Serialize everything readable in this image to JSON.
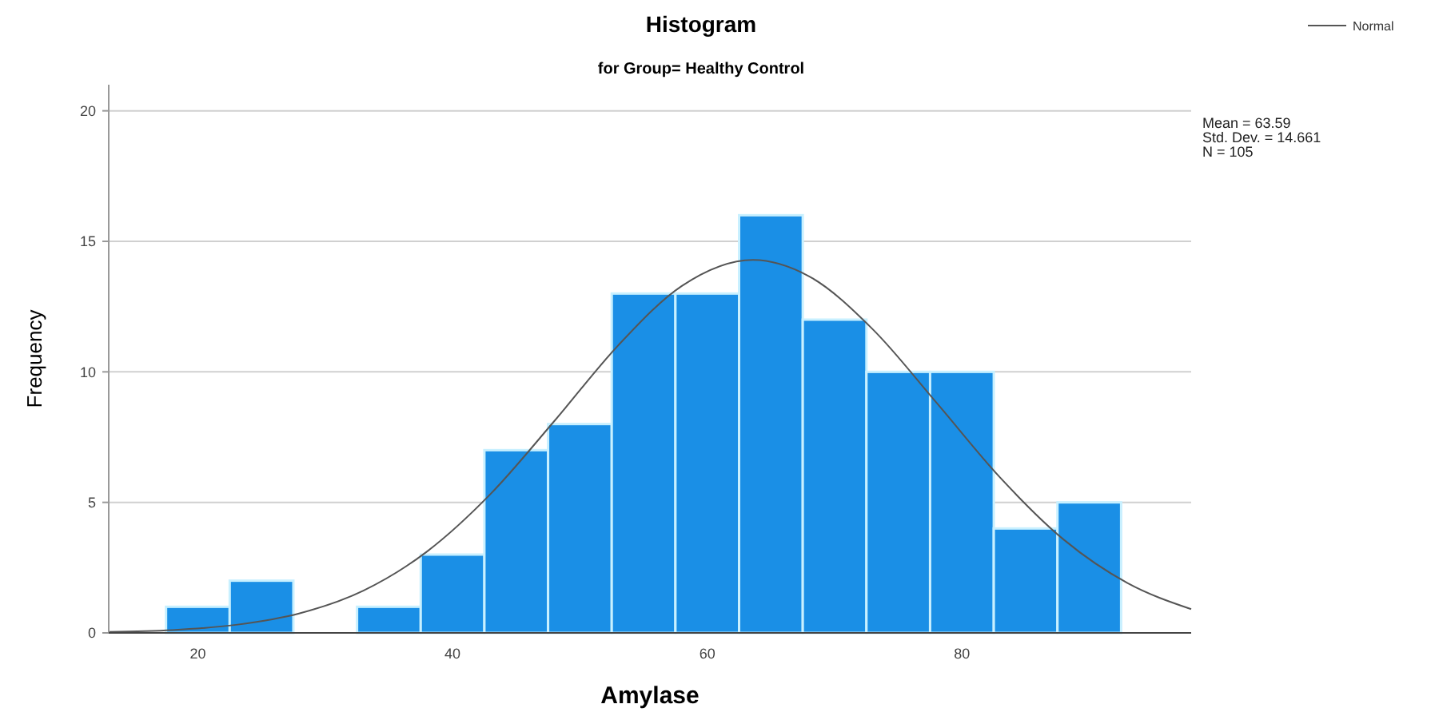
{
  "chart_data": {
    "type": "histogram",
    "title": "Histogram",
    "subtitle": "for Group= Healthy Control",
    "xlabel": "Amylase",
    "ylabel": "Frequency",
    "bins": [
      17.5,
      22.5,
      27.5,
      32.5,
      37.5,
      42.5,
      47.5,
      52.5,
      57.5,
      62.5,
      67.5,
      72.5,
      77.5,
      82.5,
      87.5,
      92.5
    ],
    "values": [
      1,
      2,
      0,
      1,
      3,
      7,
      8,
      13,
      13,
      16,
      12,
      10,
      10,
      4,
      5
    ],
    "color": "#1a8fe6",
    "series": [
      {
        "type": "line",
        "name": "Normal",
        "color": "#555555",
        "x": [
          13,
          18,
          23,
          28,
          33,
          38,
          43,
          48,
          53,
          58,
          63.59,
          68,
          73,
          78,
          83,
          88,
          93,
          98
        ],
        "values": [
          0.04,
          0.11,
          0.31,
          0.75,
          1.62,
          3.12,
          5.33,
          8.12,
          11.01,
          13.29,
          14.29,
          13.66,
          11.63,
          8.82,
          5.95,
          3.57,
          1.91,
          0.91
        ]
      }
    ],
    "xlim": [
      13,
      98
    ],
    "xticks": [
      20,
      40,
      60,
      80
    ],
    "ylim": [
      0,
      21
    ],
    "yticks": [
      0,
      5,
      10,
      15,
      20
    ],
    "grid": "y",
    "legend": "top right",
    "annotations": [
      "Mean = 63.59",
      "Std. Dev. = 14.661",
      "N = 105"
    ]
  }
}
